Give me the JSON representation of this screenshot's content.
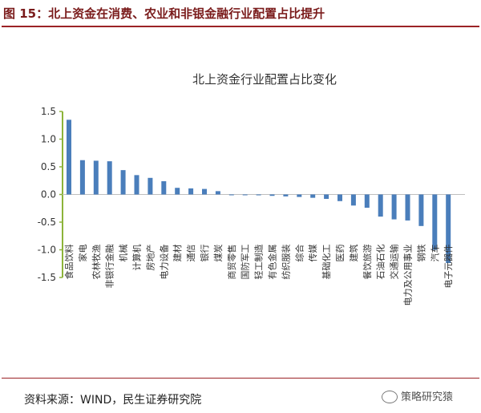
{
  "header": {
    "figure_title": "图 15：北上资金在消费、农业和非银金融行业配置占比提升"
  },
  "footer": {
    "source": "资料来源：WIND，民生证券研究院",
    "watermark": "策略研究猿"
  },
  "colors": {
    "bar": "#4a7ebb",
    "y_axis": "#8db43a",
    "zero_line": "#bfbfbf",
    "title_accent": "#9b2226"
  },
  "chart_data": {
    "type": "bar",
    "title": "北上资金行业配置占比变化",
    "xlabel": "",
    "ylabel": "",
    "ylim": [
      -1.5,
      1.5
    ],
    "yticks": [
      1.5,
      1.0,
      0.5,
      0.0,
      -0.5,
      -1.0,
      -1.5
    ],
    "ytick_labels": [
      "1.5",
      "1.0",
      "0.5",
      "0.0",
      "-0.5",
      "-1.0",
      "-1.5"
    ],
    "grid": false,
    "legend": "none",
    "categories": [
      "食品饮料",
      "家电",
      "农林牧渔",
      "非银行金融",
      "机械",
      "计算机",
      "房地产",
      "电力设备",
      "建材",
      "通信",
      "银行",
      "煤炭",
      "商贸零售",
      "国防军工",
      "轻工制造",
      "有色金属",
      "纺织服装",
      "综合",
      "传媒",
      "基础化工",
      "医药",
      "建筑",
      "餐饮旅游",
      "石油石化",
      "交通运输",
      "电力及公用事业",
      "钢铁",
      "汽车",
      "电子元器件"
    ],
    "values": [
      1.35,
      0.62,
      0.61,
      0.6,
      0.44,
      0.35,
      0.3,
      0.24,
      0.12,
      0.11,
      0.1,
      0.06,
      -0.005,
      -0.01,
      -0.015,
      -0.025,
      -0.035,
      -0.045,
      -0.06,
      -0.08,
      -0.12,
      -0.2,
      -0.24,
      -0.4,
      -0.45,
      -0.47,
      -0.57,
      -1.0,
      -1.24
    ]
  }
}
